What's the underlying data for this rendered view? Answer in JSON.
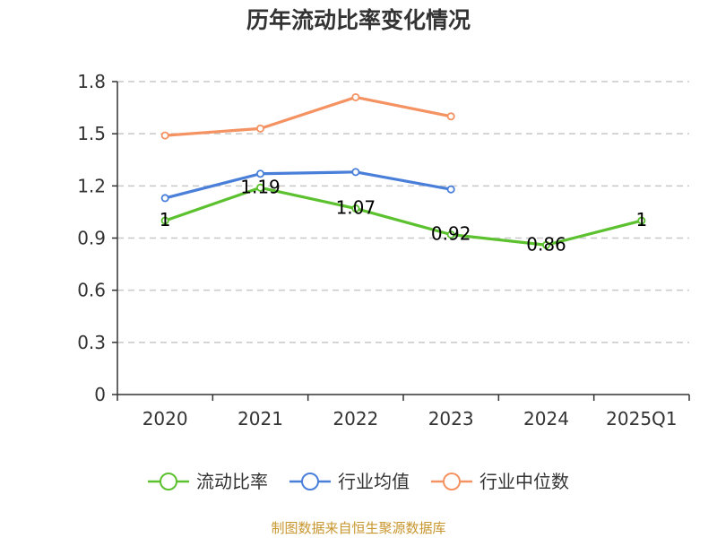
{
  "chart_data": {
    "type": "line",
    "title": "历年流动比率变化情况",
    "categories": [
      "2020",
      "2021",
      "2022",
      "2023",
      "2024",
      "2025Q1"
    ],
    "ylim": [
      0,
      1.8
    ],
    "y_ticks": [
      "0",
      "0.3",
      "0.6",
      "0.9",
      "1.2",
      "1.5",
      "1.8"
    ],
    "grid": true,
    "legend_position": "bottom",
    "series": [
      {
        "name": "流动比率",
        "color": "#5cc12f",
        "values": [
          1,
          1.19,
          1.07,
          0.92,
          0.86,
          1
        ],
        "labels": [
          "1",
          "1.19",
          "1.07",
          "0.92",
          "0.86",
          "1"
        ]
      },
      {
        "name": "行业均值",
        "color": "#4a7fd9",
        "values": [
          1.13,
          1.27,
          1.28,
          1.18,
          null,
          null
        ]
      },
      {
        "name": "行业中位数",
        "color": "#f59262",
        "values": [
          1.49,
          1.53,
          1.71,
          1.6,
          null,
          null
        ]
      }
    ]
  },
  "source": "制图数据来自恒生聚源数据库"
}
